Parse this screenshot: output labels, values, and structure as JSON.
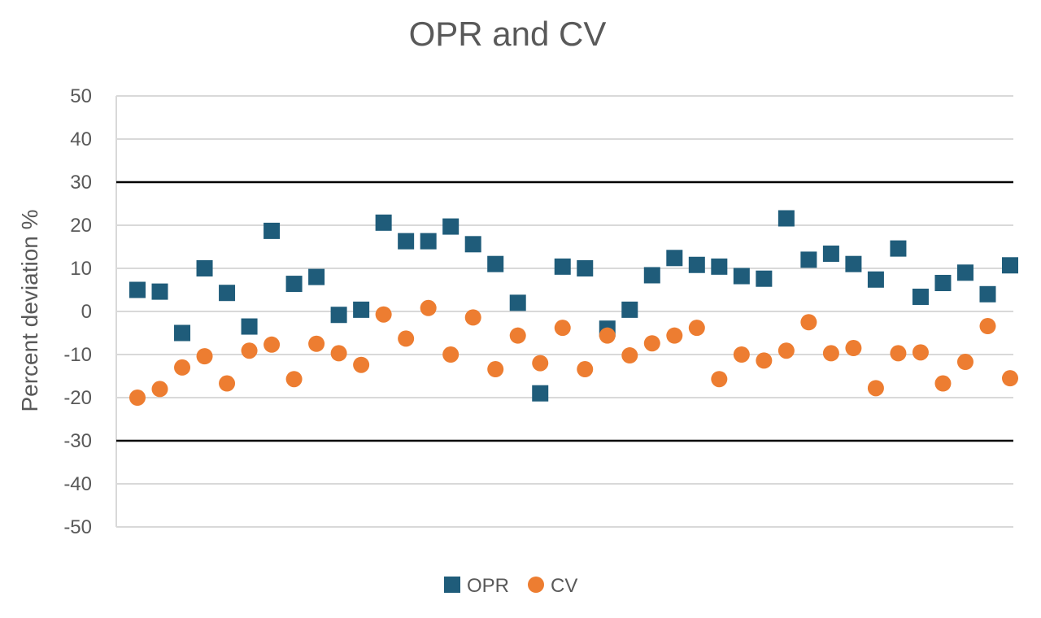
{
  "chart_data": {
    "type": "scatter",
    "title": "OPR and CV",
    "xlabel": "",
    "ylabel": "Percent deviation %",
    "ylim": [
      -50,
      50
    ],
    "yticks": [
      50,
      40,
      30,
      20,
      10,
      0,
      -10,
      -20,
      -30,
      -40,
      -50
    ],
    "reference_lines": [
      30,
      -30
    ],
    "grid": true,
    "legend_position": "bottom-center",
    "x": [
      1,
      2,
      3,
      4,
      5,
      6,
      7,
      8,
      9,
      10,
      11,
      12,
      13,
      14,
      15,
      16,
      17,
      18,
      19,
      20,
      21,
      22,
      23,
      24,
      25,
      26,
      27,
      28,
      29,
      30,
      31,
      32,
      33,
      34,
      35,
      36,
      37,
      38,
      39,
      40
    ],
    "series": [
      {
        "name": "OPR",
        "marker": "square",
        "color": "#1F5C7A",
        "values": [
          5,
          4.6,
          -5,
          10,
          4.3,
          -3.5,
          18.7,
          6.4,
          8,
          -0.8,
          0.4,
          20.6,
          16.3,
          16.3,
          19.7,
          15.6,
          11,
          2,
          -19,
          10.4,
          10,
          -4,
          0.4,
          8.4,
          12.4,
          10.8,
          10.4,
          8.2,
          7.6,
          21.6,
          12,
          13.4,
          11,
          7.4,
          14.6,
          3.4,
          6.6,
          9,
          4,
          10.7
        ]
      },
      {
        "name": "CV",
        "marker": "circle",
        "color": "#ED7D31",
        "values": [
          -20,
          -18,
          -13,
          -10.4,
          -16.7,
          -9.1,
          -7.7,
          -15.7,
          -7.5,
          -9.7,
          -12.4,
          -0.7,
          -6.3,
          0.8,
          -10,
          -1.4,
          -13.4,
          -5.6,
          -12,
          -3.8,
          -13.4,
          -5.6,
          -10.2,
          -7.4,
          -5.6,
          -3.8,
          -15.7,
          -10,
          -11.4,
          -9.1,
          -2.5,
          -9.7,
          -8.5,
          -17.8,
          -9.7,
          -9.5,
          -16.7,
          -11.7,
          -3.4,
          -15.5
        ]
      }
    ]
  }
}
